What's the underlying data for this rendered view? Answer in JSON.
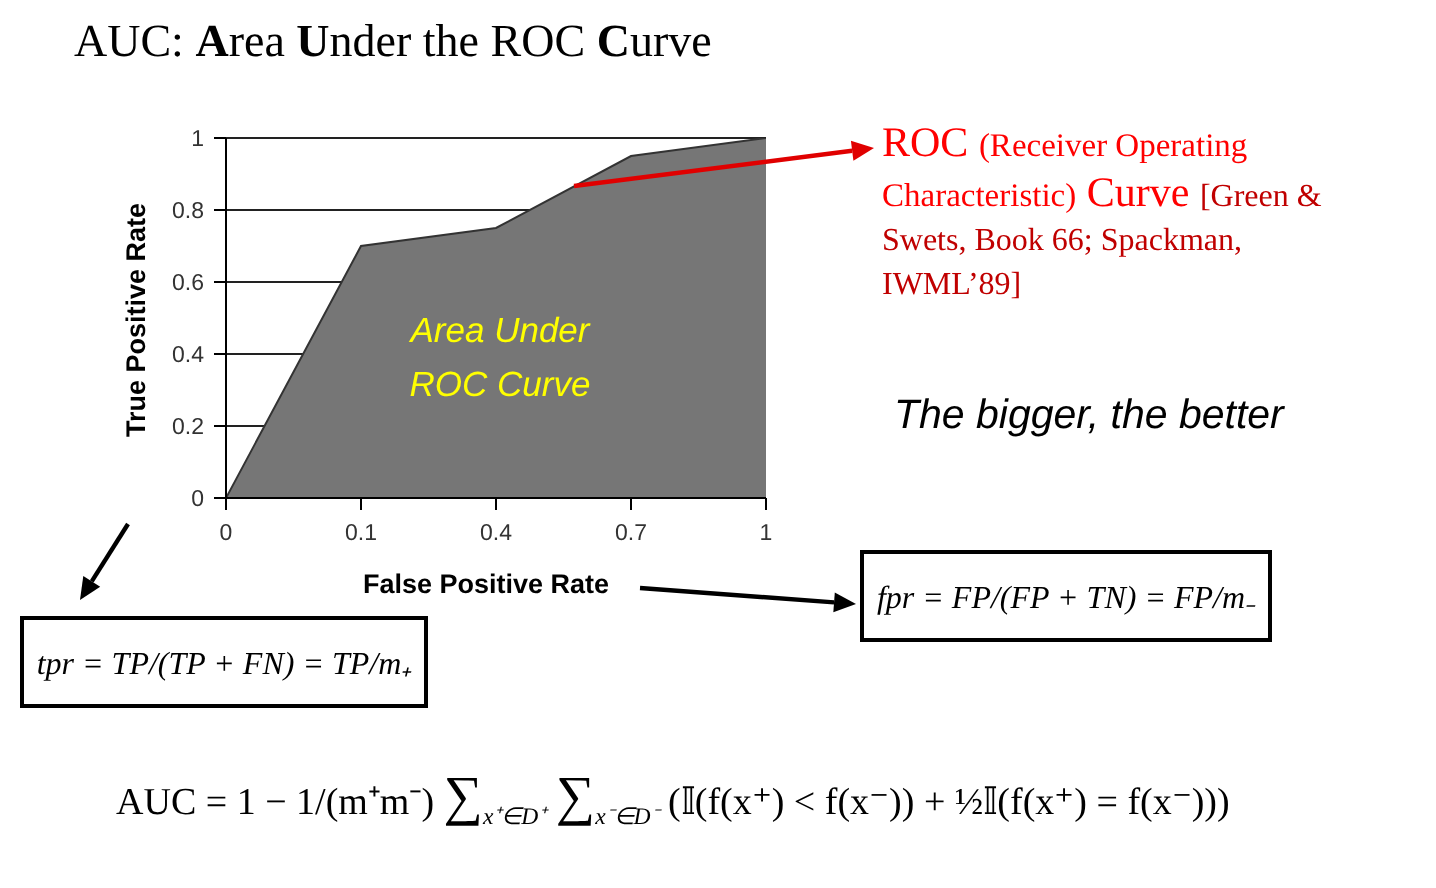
{
  "chart_data": {
    "type": "area",
    "title": "AUC: Area Under the ROC Curve",
    "xlabel": "False Positive Rate",
    "ylabel": "True Positive Rate",
    "categories": [
      "0",
      "0.1",
      "0.4",
      "0.7",
      "1"
    ],
    "values": [
      0,
      0.7,
      0.75,
      0.95,
      1
    ],
    "color": "#767676",
    "ylim": [
      0,
      1
    ],
    "yticks": [
      0,
      0.2,
      0.4,
      0.6,
      0.8,
      1
    ],
    "grid": "y",
    "annotations": [
      "Area Under ROC Curve",
      "ROC (Receiver Operating Characteristic) Curve [Green & Swets, Book 66; Spackman, IWML’89]",
      "The bigger, the better",
      "tpr = TP/(TP + FN) = TP/m₊",
      "fpr = FP/(FP + TN) = FP/m₋",
      "AUC = 1 − 1/(m⁺m⁻) ∑$_{x⁺∈D⁺}$ ∑$_{x⁻∈D⁻}$ (𝕀(f(x⁺) < f(x⁻)) + ½𝕀(f(x⁺) = f(x⁻)))"
    ]
  }
}
